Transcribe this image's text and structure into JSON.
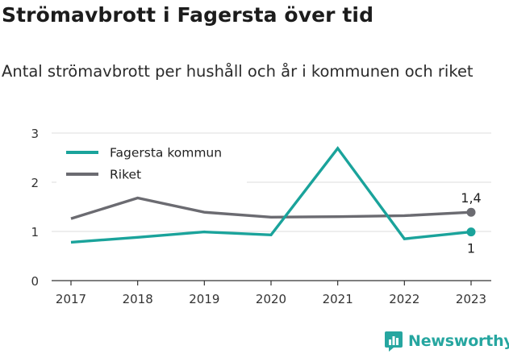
{
  "header": {
    "title": "Strömavbrott i Fagersta över tid",
    "subtitle": "Antal strömavbrott per hushåll och år i kommunen och riket"
  },
  "brand": {
    "name": "Newsworthy",
    "icon": "bar-chart-icon",
    "color": "#26a6a0"
  },
  "chart_data": {
    "type": "line",
    "title": "Strömavbrott i Fagersta över tid",
    "subtitle": "Antal strömavbrott per hushåll och år i kommunen och riket",
    "xlabel": "",
    "ylabel": "",
    "x": [
      2017,
      2018,
      2019,
      2020,
      2021,
      2022,
      2023
    ],
    "x_tick_labels": [
      "2017",
      "2018",
      "2019",
      "2020",
      "2021",
      "2022",
      "2023"
    ],
    "y_ticks": [
      0,
      1,
      2,
      3
    ],
    "y_tick_labels": [
      "0",
      "1",
      "2",
      "3"
    ],
    "ylim": [
      0,
      3
    ],
    "grid": true,
    "legend_position": "top-left",
    "series": [
      {
        "name": "Fagersta kommun",
        "color": "#1aa39b",
        "values": [
          0.78,
          0.88,
          0.99,
          0.93,
          2.69,
          0.85,
          0.99
        ],
        "end_label": "1"
      },
      {
        "name": "Riket",
        "color": "#6b6b71",
        "values": [
          1.26,
          1.68,
          1.39,
          1.29,
          1.3,
          1.32,
          1.39
        ],
        "end_label": "1,4"
      }
    ]
  }
}
